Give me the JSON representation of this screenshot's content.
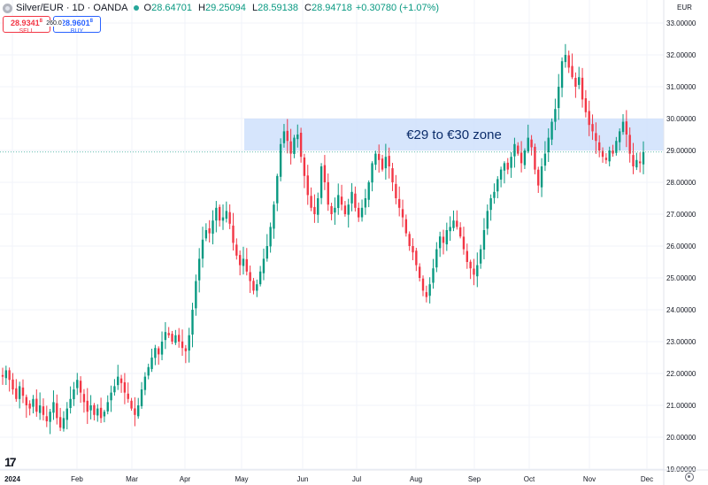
{
  "header": {
    "symbol": "Silver/EUR · 1D · OANDA",
    "ohlc": [
      {
        "k": "O",
        "v": "28.64701"
      },
      {
        "k": "H",
        "v": "29.25094"
      },
      {
        "k": "L",
        "v": "28.59138"
      },
      {
        "k": "C",
        "v": "28.94718"
      }
    ],
    "change": "+0.30780 (+1.07%)",
    "sell_price": "28.9341",
    "sell_sup": "8",
    "sell_label": "SELL",
    "buy_price": "28.9601",
    "buy_sup": "8",
    "buy_label": "BUY",
    "spread": "260.0",
    "currency": "EUR"
  },
  "colors": {
    "up": "#089981",
    "down": "#f23645",
    "zone": "#cfe0fb",
    "grid": "#f0f3fa"
  },
  "chart_data": {
    "type": "candlestick",
    "title": "",
    "y_range": [
      19.0,
      33.0
    ],
    "y_ticks": [
      "33.00000",
      "32.00000",
      "31.00000",
      "30.00000",
      "29.00000",
      "28.00000",
      "27.00000",
      "26.00000",
      "25.00000",
      "24.00000",
      "23.00000",
      "22.00000",
      "21.00000",
      "20.00000",
      "19.00000"
    ],
    "x_labels": [
      {
        "label": "2024",
        "bold": true
      },
      {
        "label": "Feb",
        "bold": false
      },
      {
        "label": "Mar",
        "bold": false
      },
      {
        "label": "Apr",
        "bold": false
      },
      {
        "label": "May",
        "bold": false
      },
      {
        "label": "Jun",
        "bold": false
      },
      {
        "label": "Jul",
        "bold": false
      },
      {
        "label": "Aug",
        "bold": false
      },
      {
        "label": "Sep",
        "bold": false
      },
      {
        "label": "Oct",
        "bold": false
      },
      {
        "label": "Nov",
        "bold": false
      },
      {
        "label": "Dec",
        "bold": false
      }
    ],
    "zone": {
      "low": 29.0,
      "high": 30.0,
      "label": "€29 to €30 zone"
    },
    "closes": [
      21.9,
      22.1,
      21.8,
      21.5,
      21.2,
      21.6,
      21.3,
      21.0,
      20.9,
      21.2,
      20.8,
      21.0,
      20.7,
      20.5,
      20.8,
      21.1,
      20.6,
      20.3,
      20.6,
      20.9,
      21.2,
      21.5,
      21.8,
      21.4,
      21.1,
      20.8,
      21.0,
      20.7,
      20.9,
      20.6,
      20.8,
      21.1,
      21.4,
      21.6,
      21.9,
      21.7,
      21.4,
      21.2,
      20.9,
      20.7,
      21.0,
      21.5,
      21.9,
      22.2,
      22.5,
      22.8,
      22.6,
      23.0,
      23.3,
      23.2,
      23.0,
      23.2,
      23.0,
      22.8,
      22.7,
      23.2,
      24.0,
      24.9,
      25.6,
      26.2,
      26.5,
      26.4,
      26.8,
      27.2,
      26.8,
      26.9,
      27.1,
      26.7,
      26.1,
      25.7,
      25.4,
      25.6,
      25.2,
      24.9,
      24.6,
      24.8,
      25.2,
      25.6,
      26.0,
      26.6,
      27.3,
      28.2,
      29.2,
      29.6,
      29.3,
      28.9,
      29.4,
      29.5,
      28.8,
      28.2,
      27.6,
      27.2,
      27.0,
      27.5,
      28.5,
      28.0,
      27.3,
      27.0,
      27.2,
      27.6,
      27.3,
      27.0,
      27.3,
      27.7,
      27.2,
      26.9,
      27.2,
      27.5,
      28.0,
      28.6,
      28.9,
      28.7,
      28.4,
      28.8,
      28.5,
      28.0,
      27.5,
      27.2,
      26.9,
      26.4,
      26.0,
      25.8,
      25.4,
      25.0,
      24.6,
      24.4,
      24.8,
      25.3,
      25.9,
      26.3,
      26.1,
      26.5,
      26.6,
      26.8,
      26.6,
      26.3,
      25.9,
      25.5,
      25.3,
      25.1,
      25.4,
      25.9,
      26.5,
      27.1,
      27.5,
      27.7,
      28.1,
      28.4,
      28.6,
      28.4,
      28.8,
      29.2,
      28.9,
      28.6,
      29.0,
      29.4,
      29.1,
      28.4,
      27.9,
      28.5,
      28.9,
      29.4,
      29.9,
      30.3,
      31.0,
      31.8,
      32.0,
      31.6,
      31.3,
      31.0,
      31.3,
      30.6,
      30.2,
      29.8,
      29.6,
      29.3,
      29.0,
      28.8,
      28.7,
      29.0,
      28.9,
      29.3,
      29.6,
      29.9,
      29.5,
      28.9,
      28.5,
      28.7,
      28.6,
      28.95
    ]
  }
}
